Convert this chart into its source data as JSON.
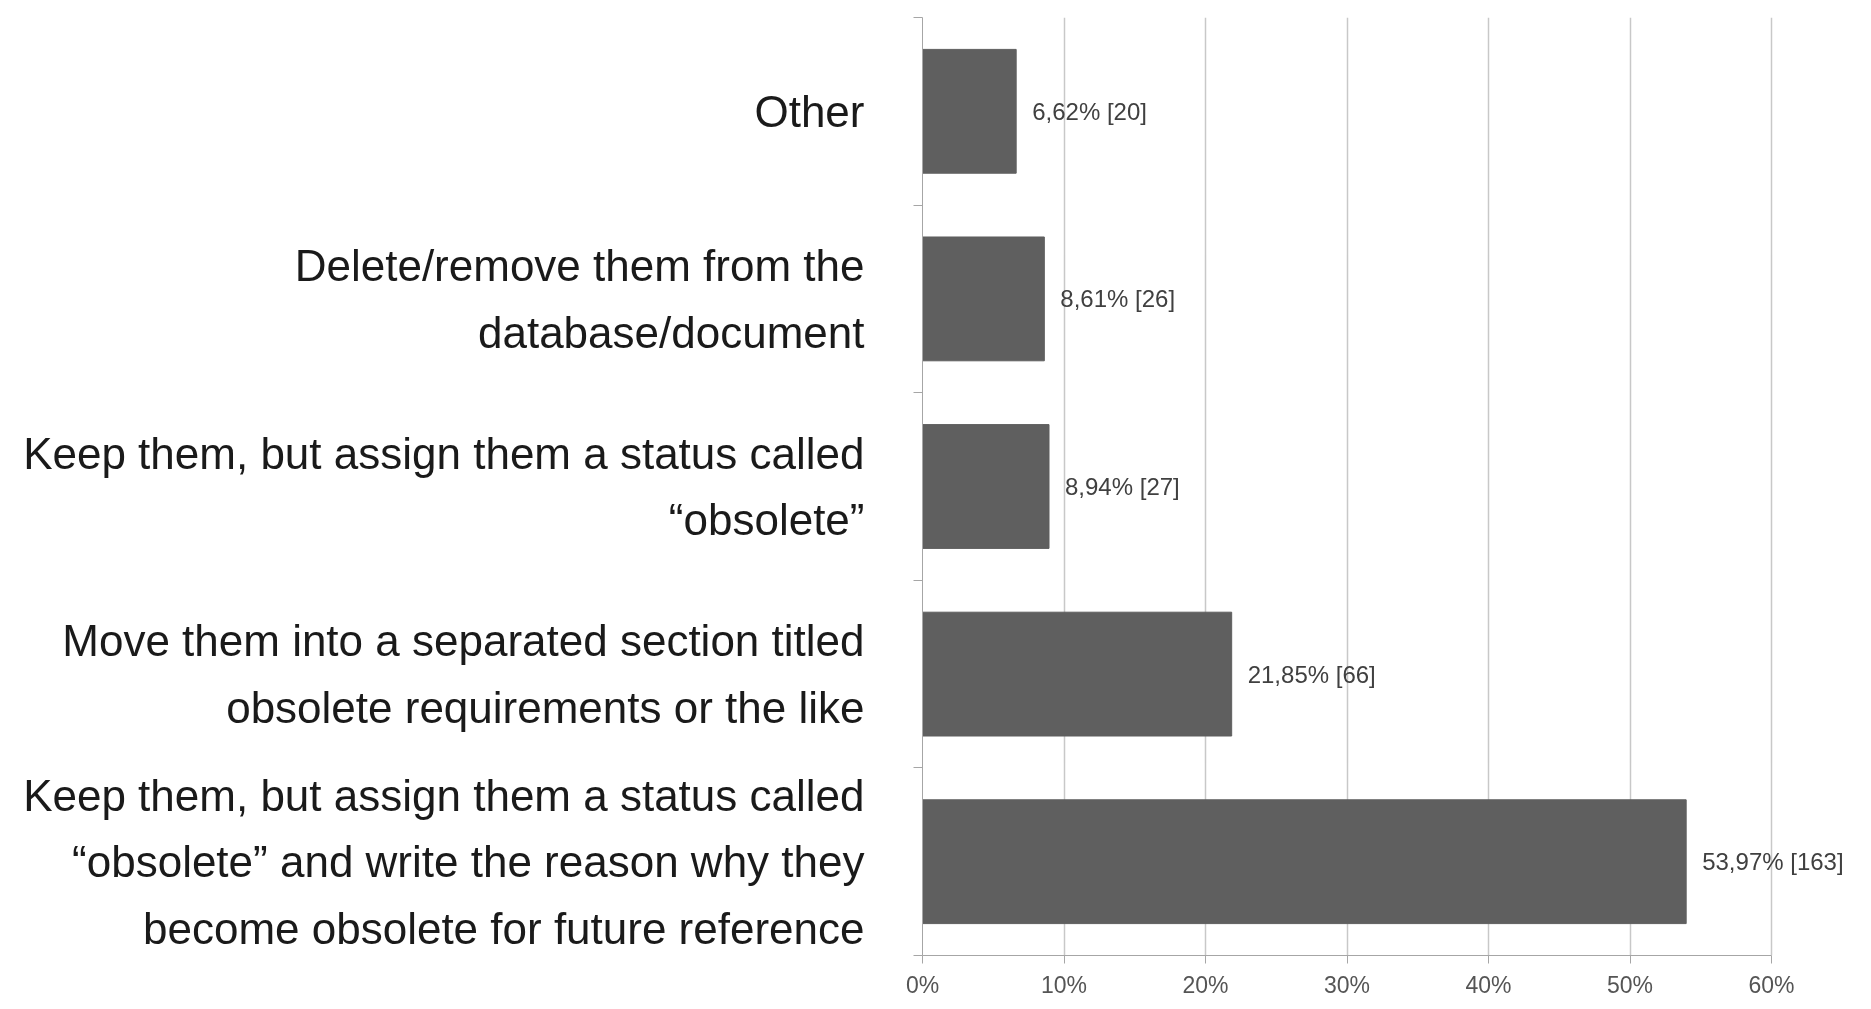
{
  "chart_data": {
    "type": "bar",
    "orientation": "horizontal",
    "categories": [
      "Other",
      "Delete/remove them from the database/document",
      "Keep them, but assign them a status called “obsolete”",
      "Move them into a separated section titled obsolete requirements or the like",
      "Keep them, but assign them a status called “obsolete” and write the reason why they become obsolete for future reference"
    ],
    "values": [
      6.62,
      8.61,
      8.94,
      21.85,
      53.97
    ],
    "value_labels": [
      "6,62% [20]",
      "8,61% [26]",
      "8,94% [27]",
      "21,85% [66]",
      "53,97% [163]"
    ],
    "color": "#5f5f5f",
    "xlim": [
      0,
      60
    ],
    "xticks": [
      {
        "value": 0,
        "label": "0%"
      },
      {
        "value": 10,
        "label": "10%"
      },
      {
        "value": 20,
        "label": "20%"
      },
      {
        "value": 30,
        "label": "30%"
      },
      {
        "value": 40,
        "label": "40%"
      },
      {
        "value": 50,
        "label": "50%"
      },
      {
        "value": 60,
        "label": "60%"
      }
    ],
    "grid": "x"
  }
}
